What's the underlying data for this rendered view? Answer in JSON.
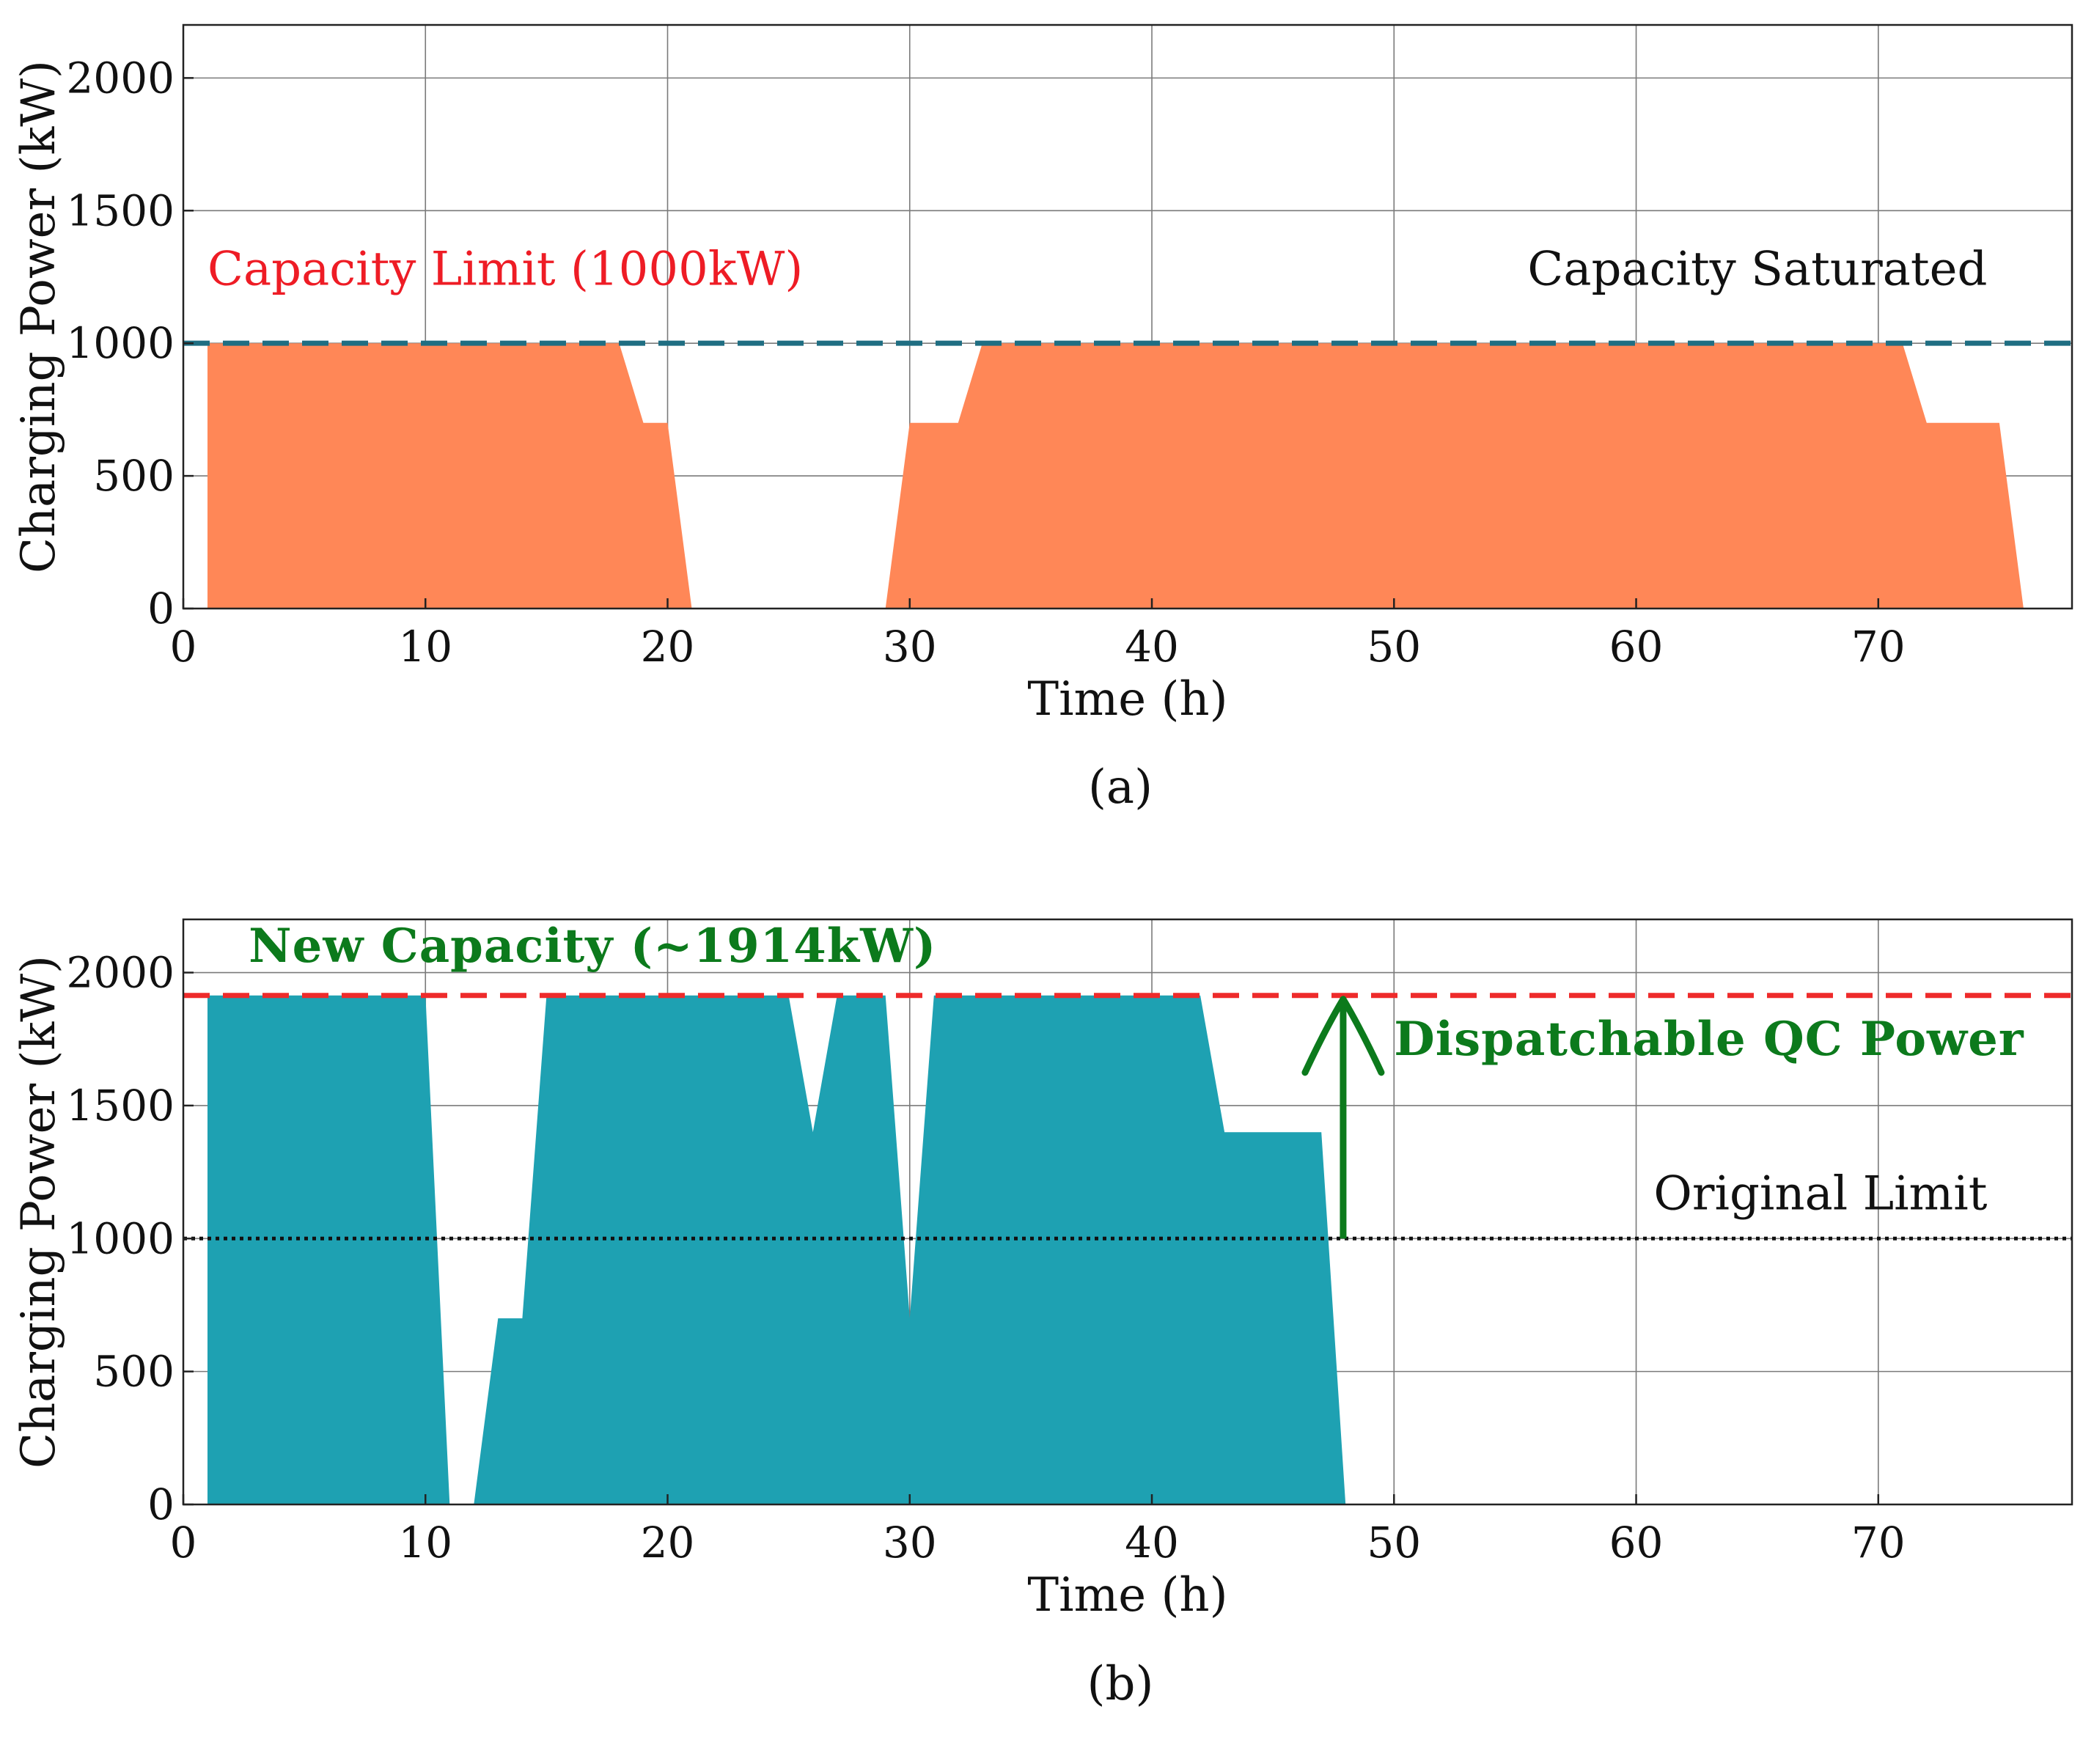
{
  "chart_data": [
    {
      "type": "area",
      "panel_caption": "(a)",
      "xlabel": "Time (h)",
      "ylabel": "Charging Power (kW)",
      "xlim": [
        0,
        78
      ],
      "ylim": [
        0,
        2200
      ],
      "xticks": [
        0,
        10,
        20,
        30,
        40,
        50,
        60,
        70
      ],
      "yticks": [
        0,
        500,
        1000,
        1500,
        2000
      ],
      "grid": true,
      "fill_color": "#ff8757",
      "series": [
        {
          "x": [
            1,
            1,
            18,
            19,
            20,
            21,
            29,
            30,
            32,
            33,
            71,
            72,
            75,
            76,
            76
          ],
          "y": [
            0,
            1000,
            1000,
            700,
            700,
            0,
            0,
            700,
            700,
            1000,
            1000,
            700,
            700,
            0,
            0
          ]
        }
      ],
      "reference_lines": [
        {
          "y": 1000,
          "style": "dashed",
          "color": "#1f6e82"
        }
      ],
      "annotations": [
        {
          "text": "Capacity Limit (1000kW)",
          "color": "#ee1c25",
          "bold": false,
          "x": 1,
          "y": 1220,
          "anchor": "start"
        },
        {
          "text": "Capacity Saturated",
          "color": "#111111",
          "bold": false,
          "x": 74.5,
          "y": 1220,
          "anchor": "end"
        }
      ]
    },
    {
      "type": "area",
      "panel_caption": "(b)",
      "xlabel": "Time (h)",
      "ylabel": "Charging Power (kW)",
      "xlim": [
        0,
        78
      ],
      "ylim": [
        0,
        2200
      ],
      "xticks": [
        0,
        10,
        20,
        30,
        40,
        50,
        60,
        70
      ],
      "yticks": [
        0,
        500,
        1000,
        1500,
        2000
      ],
      "grid": true,
      "fill_color": "#1ea1b2",
      "series": [
        {
          "x": [
            1,
            1,
            10,
            11,
            12,
            13,
            14,
            15,
            25,
            26,
            27,
            29,
            30,
            31,
            42,
            43,
            47,
            48,
            48
          ],
          "y": [
            0,
            1914,
            1914,
            0,
            0,
            700,
            700,
            1914,
            1914,
            1400,
            1914,
            1914,
            700,
            1914,
            1914,
            1400,
            1400,
            0,
            0
          ]
        }
      ],
      "reference_lines": [
        {
          "y": 1914,
          "style": "dashed",
          "color": "#ee2b2b"
        },
        {
          "y": 1000,
          "style": "dotted",
          "color": "#111111"
        }
      ],
      "arrow": {
        "x": 47.9,
        "y_from": 1000,
        "y_to": 1900,
        "color": "#0c7a1c"
      },
      "annotations": [
        {
          "text": "New Capacity (~1914kW)",
          "color": "#0c7a1c",
          "bold": true,
          "x": 2.7,
          "y": 2040,
          "anchor": "start"
        },
        {
          "text": "Dispatchable QC Power",
          "color": "#0c7a1c",
          "bold": true,
          "x": 50,
          "y": 1690,
          "anchor": "start"
        },
        {
          "text": "Original Limit",
          "color": "#111111",
          "bold": false,
          "x": 74.5,
          "y": 1110,
          "anchor": "end"
        }
      ]
    }
  ]
}
